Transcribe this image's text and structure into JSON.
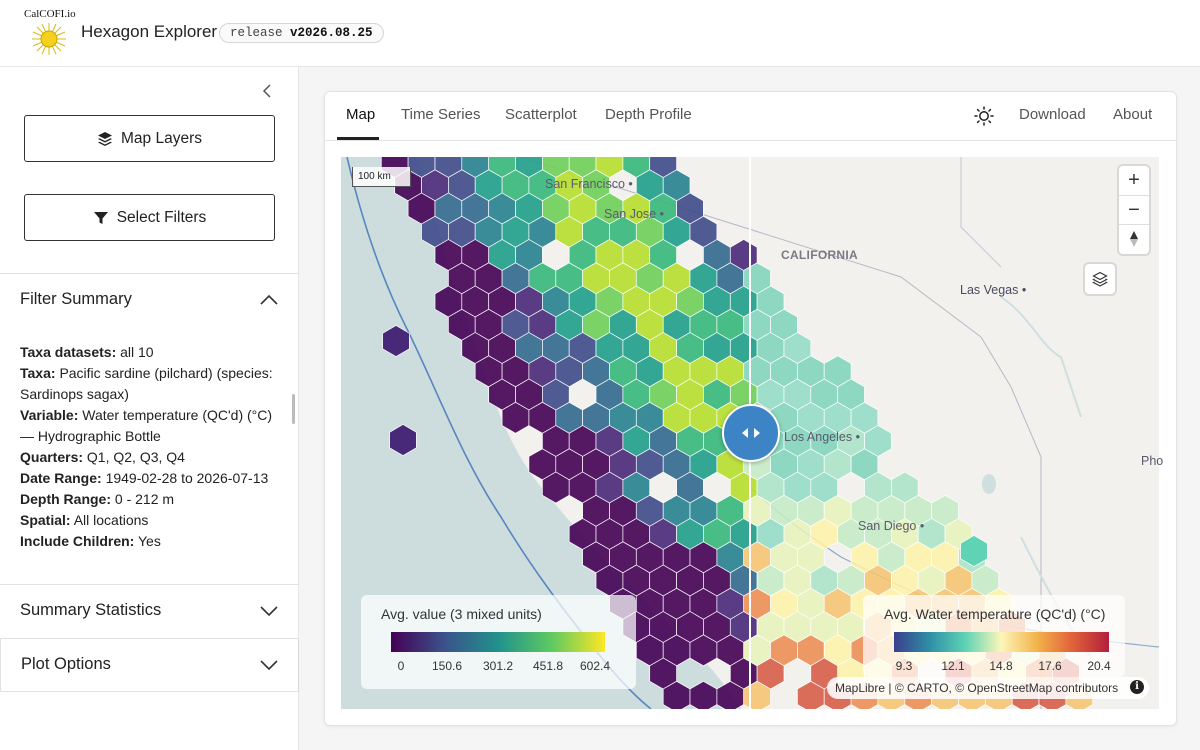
{
  "app": {
    "logo_text": "CalCOFI.io",
    "title": "Hexagon Explorer",
    "release_prefix": "release",
    "release_version": "v2026.08.25"
  },
  "sidebar": {
    "map_layers_label": "Map Layers",
    "select_filters_label": "Select Filters",
    "filter_summary_title": "Filter Summary",
    "summary_items": [
      {
        "key": "Taxa datasets:",
        "value": "all 10"
      },
      {
        "key": "Taxa:",
        "value": "Pacific sardine (pilchard) (species: Sardinops sagax)"
      },
      {
        "key": "Variable:",
        "value": "Water temperature (QC'd) (°C) — Hydrographic Bottle"
      },
      {
        "key": "Quarters:",
        "value": "Q1, Q2, Q3, Q4"
      },
      {
        "key": "Date Range:",
        "value": "1949-02-28 to 2026-07-13"
      },
      {
        "key": "Depth Range:",
        "value": "0 - 212 m"
      },
      {
        "key": "Spatial:",
        "value": "All locations"
      },
      {
        "key": "Include Children:",
        "value": "Yes"
      }
    ],
    "summary_statistics_title": "Summary Statistics",
    "plot_options_title": "Plot Options"
  },
  "tabs": [
    {
      "label": "Map",
      "active": true
    },
    {
      "label": "Time Series",
      "active": false
    },
    {
      "label": "Scatterplot",
      "active": false
    },
    {
      "label": "Depth Profile",
      "active": false
    }
  ],
  "nav_right": {
    "download_label": "Download",
    "about_label": "About",
    "theme_icon": "sun-icon"
  },
  "map": {
    "scale_label": "100 km",
    "zoom_in": "+",
    "zoom_out": "−",
    "places": {
      "san_francisco": "San Francisco",
      "san_jose": "San Jose",
      "california": "CALIFORNIA",
      "las_vegas": "Las Vegas",
      "los_angeles": "Los Angeles",
      "san_diego": "San Diego",
      "phoenix": "Pho"
    },
    "legend_left": {
      "title": "Avg. value (3 mixed units)",
      "ticks": [
        "0",
        "150.6",
        "301.2",
        "451.8",
        "602.4"
      ],
      "palette": "viridis"
    },
    "legend_right": {
      "title": "Avg. Water temperature (QC'd) (°C)",
      "ticks": [
        "9.3",
        "12.1",
        "14.8",
        "17.6",
        "20.4"
      ],
      "palette": "teal-yellow-red"
    },
    "attribution": "MapLibre | © CARTO, © OpenStreetMap contributors"
  },
  "colors": {
    "swipe_handle": "#3c84c6",
    "ocean": "#cfdfe0",
    "land": "#f3f1ee"
  }
}
